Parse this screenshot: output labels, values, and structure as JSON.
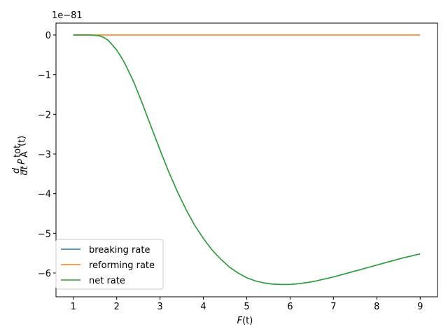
{
  "chart_data": {
    "type": "line",
    "title": "",
    "xlabel_main": "F",
    "xlabel_rest": "(t)",
    "ylabel_frac_num": "d",
    "ylabel_frac_den": "dt",
    "ylabel_symbol": "P",
    "ylabel_sup": "tot",
    "ylabel_sub": "A",
    "ylabel_rest": "(t)",
    "offset_text": "1e−81",
    "xlim": [
      0.6,
      9.4
    ],
    "ylim": [
      -6.6,
      0.3
    ],
    "xticks": [
      1,
      2,
      3,
      4,
      5,
      6,
      7,
      8,
      9
    ],
    "xtick_labels": [
      "1",
      "2",
      "3",
      "4",
      "5",
      "6",
      "7",
      "8",
      "9"
    ],
    "yticks": [
      0,
      -1,
      -2,
      -3,
      -4,
      -5,
      -6
    ],
    "ytick_labels": [
      "0",
      "−1",
      "−2",
      "−3",
      "−4",
      "−5",
      "−6"
    ],
    "grid": false,
    "legend_position": "lower-left",
    "series": [
      {
        "name": "breaking rate",
        "color": "#1f77b4",
        "x": [
          1.0,
          1.2,
          1.4,
          1.6,
          1.7,
          1.8,
          1.9,
          2.0,
          2.1,
          2.2,
          2.4,
          2.6,
          2.8,
          3.0,
          3.2,
          3.4,
          3.6,
          3.8,
          4.0,
          4.2,
          4.4,
          4.6,
          4.8,
          5.0,
          5.2,
          5.4,
          5.6,
          5.8,
          6.0,
          6.2,
          6.4,
          6.6,
          6.8,
          7.0,
          7.2,
          7.4,
          7.6,
          7.8,
          8.0,
          8.2,
          8.4,
          8.6,
          8.8,
          9.0
        ],
        "y": [
          0.0,
          0.0,
          0.0,
          -0.02,
          -0.06,
          -0.13,
          -0.25,
          -0.38,
          -0.55,
          -0.74,
          -1.2,
          -1.75,
          -2.33,
          -2.9,
          -3.45,
          -3.95,
          -4.4,
          -4.8,
          -5.13,
          -5.42,
          -5.65,
          -5.85,
          -6.0,
          -6.12,
          -6.2,
          -6.25,
          -6.28,
          -6.29,
          -6.29,
          -6.27,
          -6.24,
          -6.2,
          -6.15,
          -6.1,
          -6.04,
          -5.98,
          -5.92,
          -5.86,
          -5.8,
          -5.74,
          -5.68,
          -5.62,
          -5.57,
          -5.52
        ]
      },
      {
        "name": "reforming rate",
        "color": "#ff7f0e",
        "x": [
          1.0,
          2.0,
          3.0,
          4.0,
          5.0,
          6.0,
          7.0,
          8.0,
          8.8,
          9.0
        ],
        "y": [
          0.0,
          0.0,
          0.0,
          0.0,
          0.0,
          0.0,
          0.0,
          0.0,
          0.0,
          0.0
        ]
      },
      {
        "name": "net rate",
        "color": "#2ca02c",
        "x": [
          1.0,
          1.2,
          1.4,
          1.6,
          1.7,
          1.8,
          1.9,
          2.0,
          2.1,
          2.2,
          2.4,
          2.6,
          2.8,
          3.0,
          3.2,
          3.4,
          3.6,
          3.8,
          4.0,
          4.2,
          4.4,
          4.6,
          4.8,
          5.0,
          5.2,
          5.4,
          5.6,
          5.8,
          6.0,
          6.2,
          6.4,
          6.6,
          6.8,
          7.0,
          7.2,
          7.4,
          7.6,
          7.8,
          8.0,
          8.2,
          8.4,
          8.6,
          8.8,
          8.9,
          9.0
        ],
        "y": [
          0.0,
          0.0,
          0.0,
          -0.02,
          -0.06,
          -0.13,
          -0.25,
          -0.38,
          -0.55,
          -0.74,
          -1.2,
          -1.75,
          -2.33,
          -2.9,
          -3.45,
          -3.95,
          -4.4,
          -4.8,
          -5.13,
          -5.42,
          -5.65,
          -5.85,
          -6.0,
          -6.12,
          -6.2,
          -6.25,
          -6.28,
          -6.29,
          -6.29,
          -6.27,
          -6.24,
          -6.2,
          -6.15,
          -6.1,
          -6.04,
          -5.98,
          -5.92,
          -5.86,
          -5.8,
          -5.74,
          -5.68,
          -5.62,
          -5.57,
          -5.54,
          -5.52
        ]
      }
    ]
  }
}
